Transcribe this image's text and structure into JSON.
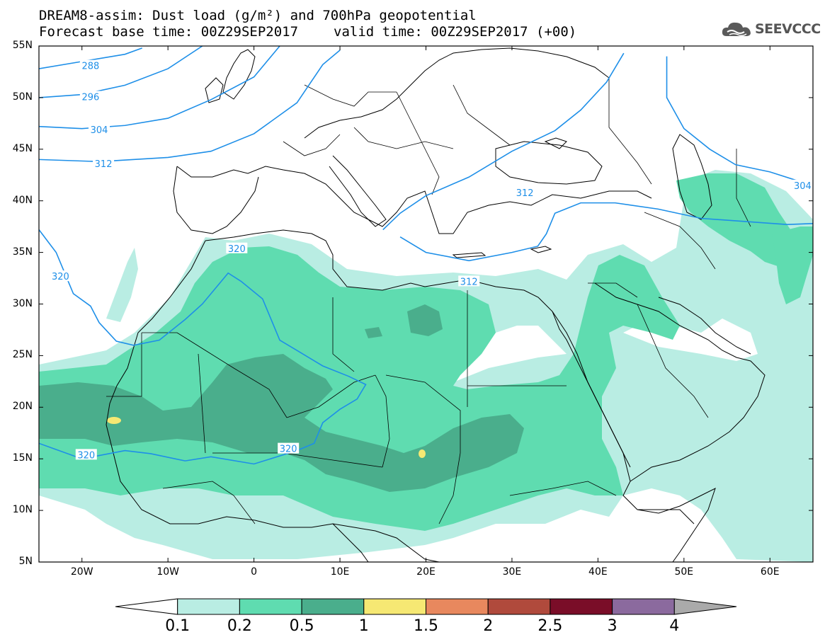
{
  "title": {
    "line1": "DREAM8-assim: Dust load (g/m²) and 700hPa geopotential",
    "line2_left": "Forecast base time: 00Z29SEP2017",
    "line2_right": "valid time: 00Z29SEP2017 (+00)"
  },
  "logo": {
    "text": "SEEVCCC",
    "icon": "cloud-icon"
  },
  "map": {
    "lon_range": [
      -25,
      65
    ],
    "lat_range": [
      5,
      55
    ],
    "lat_ticks": [
      {
        "value": 55,
        "label": "55N"
      },
      {
        "value": 50,
        "label": "50N"
      },
      {
        "value": 45,
        "label": "45N"
      },
      {
        "value": 40,
        "label": "40N"
      },
      {
        "value": 35,
        "label": "35N"
      },
      {
        "value": 30,
        "label": "30N"
      },
      {
        "value": 25,
        "label": "25N"
      },
      {
        "value": 20,
        "label": "20N"
      },
      {
        "value": 15,
        "label": "15N"
      },
      {
        "value": 10,
        "label": "10N"
      },
      {
        "value": 5,
        "label": "5N"
      }
    ],
    "lon_ticks": [
      {
        "value": -20,
        "label": "20W"
      },
      {
        "value": -10,
        "label": "10W"
      },
      {
        "value": 0,
        "label": "0"
      },
      {
        "value": 10,
        "label": "10E"
      },
      {
        "value": 20,
        "label": "20E"
      },
      {
        "value": 30,
        "label": "30E"
      },
      {
        "value": 40,
        "label": "40E"
      },
      {
        "value": 50,
        "label": "50E"
      },
      {
        "value": 60,
        "label": "60E"
      }
    ],
    "contour_color": "#1e8fe8",
    "coast_color": "#000000",
    "contours": [
      {
        "label": "288",
        "points": [
          [
            -25,
            52.8
          ],
          [
            -20,
            53.5
          ],
          [
            -15,
            54.2
          ],
          [
            -13,
            54.8
          ]
        ],
        "label_at": [
          -19,
          53.1
        ]
      },
      {
        "label": "296",
        "points": [
          [
            -25,
            50.0
          ],
          [
            -20,
            50.3
          ],
          [
            -15,
            51.2
          ],
          [
            -10,
            52.8
          ],
          [
            -6,
            55
          ]
        ],
        "label_at": [
          -19,
          50.1
        ]
      },
      {
        "label": "304",
        "points": [
          [
            -25,
            47.2
          ],
          [
            -20,
            47.0
          ],
          [
            -15,
            47.3
          ],
          [
            -10,
            48.0
          ],
          [
            -5,
            49.8
          ],
          [
            0,
            52.0
          ],
          [
            3,
            55
          ]
        ],
        "label_at": [
          -18,
          46.9
        ]
      },
      {
        "label": "312",
        "points": [
          [
            -25,
            44.0
          ],
          [
            -18,
            43.8
          ],
          [
            -10,
            44.2
          ],
          [
            -5,
            44.8
          ],
          [
            0,
            46.5
          ],
          [
            5,
            49.5
          ],
          [
            8,
            53.2
          ],
          [
            10,
            54.6
          ]
        ],
        "label_at": [
          -17.5,
          43.6
        ]
      },
      {
        "label": "312",
        "points": [
          [
            15,
            37.2
          ],
          [
            17,
            38.8
          ],
          [
            20,
            40.5
          ],
          [
            25,
            42.3
          ],
          [
            30,
            44.8
          ],
          [
            35,
            46.8
          ],
          [
            38,
            48.8
          ],
          [
            41,
            51.5
          ],
          [
            43,
            54.3
          ]
        ],
        "label_at": [
          31.5,
          40.8
        ]
      },
      {
        "label": "312",
        "points": [
          [
            17,
            36.5
          ],
          [
            20,
            35.0
          ],
          [
            25,
            34.2
          ],
          [
            30,
            35.0
          ],
          [
            33,
            35.6
          ],
          [
            34,
            36.8
          ],
          [
            35,
            38.8
          ],
          [
            38,
            39.8
          ],
          [
            42,
            39.8
          ],
          [
            47,
            39.2
          ],
          [
            52,
            38.3
          ],
          [
            57,
            38.0
          ],
          [
            62,
            37.7
          ],
          [
            65,
            37.8
          ]
        ],
        "label_at": [
          25,
          32.2
        ]
      },
      {
        "label": "304",
        "points": [
          [
            48,
            54
          ],
          [
            48,
            50
          ],
          [
            50,
            47
          ],
          [
            53,
            45
          ],
          [
            56,
            43.5
          ],
          [
            60,
            42.8
          ],
          [
            63,
            42
          ],
          [
            65,
            41.8
          ]
        ],
        "label_at": [
          63.8,
          41.5
        ]
      },
      {
        "label": "320",
        "points": [
          [
            -25,
            37.2
          ],
          [
            -23,
            35.0
          ],
          [
            -22,
            33
          ],
          [
            -21,
            31
          ],
          [
            -19,
            29.8
          ],
          [
            -18,
            28.2
          ],
          [
            -16,
            26.4
          ],
          [
            -14,
            26.0
          ],
          [
            -11,
            26.5
          ],
          [
            -8,
            28.5
          ],
          [
            -6,
            30
          ],
          [
            -4,
            32
          ],
          [
            -3,
            33.0
          ],
          [
            -1.5,
            32.2
          ],
          [
            1,
            30.5
          ],
          [
            2,
            28.5
          ],
          [
            3,
            26.5
          ],
          [
            5,
            25.5
          ],
          [
            8,
            24.0
          ],
          [
            11,
            23.0
          ],
          [
            13,
            22.2
          ],
          [
            12,
            20.8
          ],
          [
            10,
            19.8
          ],
          [
            8,
            18.5
          ],
          [
            7,
            16.5
          ],
          [
            5,
            15.8
          ],
          [
            0,
            14.5
          ],
          [
            -5,
            15.2
          ],
          [
            -8,
            14.8
          ],
          [
            -12,
            15.5
          ],
          [
            -15,
            15.8
          ],
          [
            -20,
            15.0
          ],
          [
            -25,
            16.5
          ]
        ],
        "label_at": [
          -22.5,
          32.7
        ]
      },
      {
        "label": "320",
        "points": [],
        "label_at": [
          -2,
          35.4
        ]
      },
      {
        "label": "320",
        "points": [],
        "label_at": [
          -19.5,
          15.4
        ]
      },
      {
        "label": "320",
        "points": [],
        "label_at": [
          4,
          16.0
        ]
      }
    ],
    "dust_levels": [
      {
        "level": "0.1",
        "color": "#b9ede3"
      },
      {
        "level": "0.2",
        "color": "#5fdcb0"
      },
      {
        "level": "0.5",
        "color": "#4aae8c"
      },
      {
        "level": "1",
        "color": "#f6e873"
      }
    ]
  },
  "colorbar": {
    "colors": [
      "#ffffff",
      "#b9ede3",
      "#5fdcb0",
      "#4aae8c",
      "#f6e873",
      "#e8885e",
      "#b04a3c",
      "#7a0d28",
      "#8b6a9e",
      "#aaaaaa"
    ],
    "labels": [
      "0.1",
      "0.2",
      "0.5",
      "1",
      "1.5",
      "2",
      "2.5",
      "3",
      "4"
    ]
  }
}
